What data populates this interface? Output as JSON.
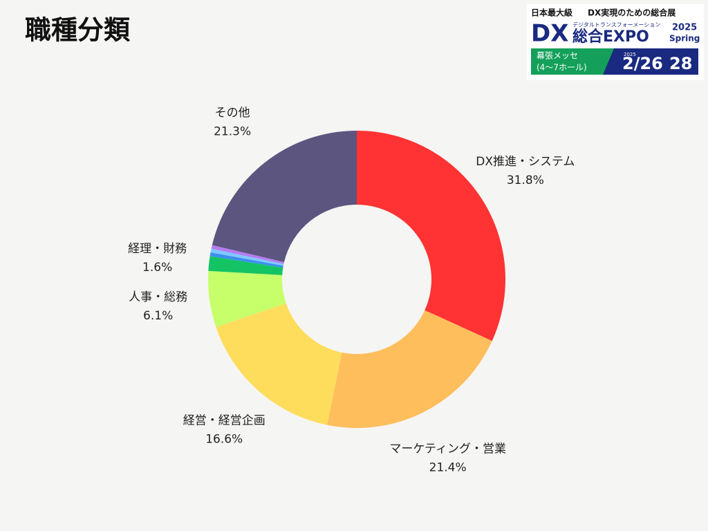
{
  "header": {
    "title": "職種分類"
  },
  "logo": {
    "line1": "日本最大級",
    "line1b": "DX実現のための総合展",
    "dx": "DX",
    "sub": "デジタルトランスフォーメーション",
    "expo": "総合EXPO",
    "year": "2025",
    "season": "Spring",
    "venue": "幕張メッセ",
    "halls": "(4〜7ホール)",
    "dyear": "2025",
    "date1": "2/26",
    "date2": "28"
  },
  "chart_data": {
    "type": "donut",
    "categories": [
      "DX推進・システム",
      "マーケティング・営業",
      "経営・経営企画",
      "人事・総務",
      "経理・財務",
      null,
      null,
      null,
      "その他"
    ],
    "values": [
      31.8,
      21.4,
      16.6,
      6.1,
      1.6,
      0.4,
      0.4,
      0.4,
      21.3
    ],
    "value_labels": [
      "31.8%",
      "21.4%",
      "16.6%",
      "6.1%",
      "1.6%",
      null,
      null,
      null,
      "21.3%"
    ],
    "colors": [
      "#ff3333",
      "#ffbe5c",
      "#ffdd5c",
      "#c6ff6a",
      "#14c464",
      "#3b8ff0",
      "#7fc8ff",
      "#b57cf0",
      "#5c557f"
    ]
  }
}
